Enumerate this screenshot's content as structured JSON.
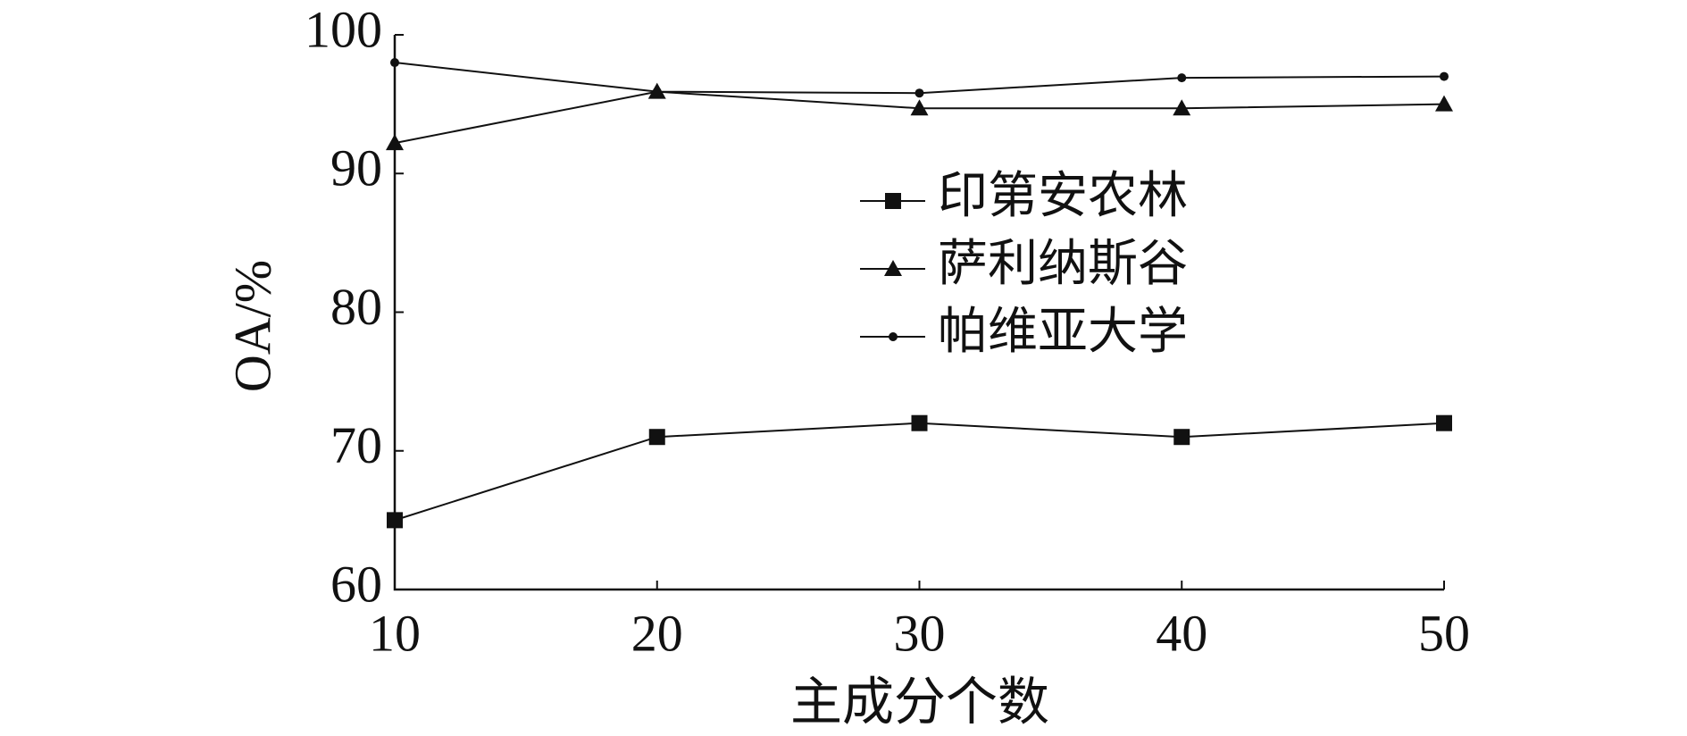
{
  "chart_data": {
    "type": "line",
    "x_label": "主成分个数",
    "y_label": "OA/%",
    "x": [
      10,
      20,
      30,
      40,
      50
    ],
    "series": [
      {
        "name": "印第安农林",
        "color": "#111111",
        "marker": "square",
        "values": [
          65.0,
          71.0,
          72.0,
          71.0,
          72.0
        ]
      },
      {
        "name": "萨利纳斯谷",
        "color": "#111111",
        "marker": "triangle",
        "values": [
          92.2,
          95.9,
          94.7,
          94.7,
          95.0
        ]
      },
      {
        "name": "帕维亚大学",
        "color": "#111111",
        "marker": "dot",
        "values": [
          98.0,
          95.9,
          95.8,
          96.9,
          97.0
        ]
      }
    ],
    "xlim": [
      10,
      50
    ],
    "xticks": [
      10,
      20,
      30,
      40,
      50
    ],
    "ylim": [
      60,
      100
    ],
    "yticks": [
      60,
      70,
      80,
      90,
      100
    ],
    "grid": false,
    "legend": "center"
  }
}
